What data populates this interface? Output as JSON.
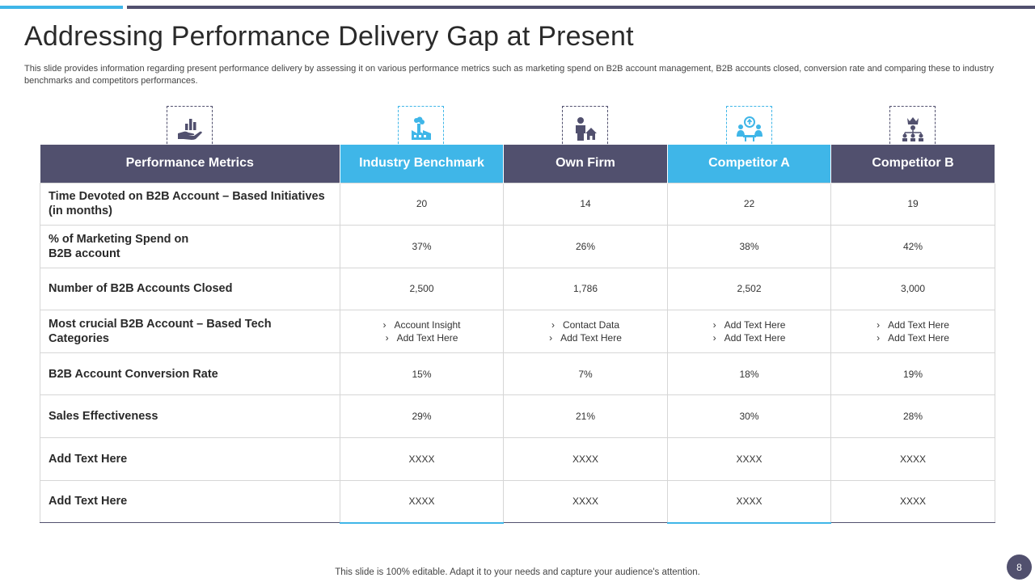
{
  "title": "Addressing Performance Delivery Gap at Present",
  "subtitle": "This slide provides information regarding present performance delivery by  assessing it on various performance metrics such as marketing spend on B2B account management, B2B accounts closed, conversion rate  and comparing these to industry benchmarks and competitors performances.",
  "colors": {
    "dark": "#51506e",
    "accent": "#3fb6e8"
  },
  "icons": [
    "hand-chart-icon",
    "factory-icon",
    "person-home-icon",
    "team-meeting-icon",
    "org-hierarchy-icon"
  ],
  "headers": [
    "Performance Metrics",
    "Industry Benchmark",
    "Own Firm",
    "Competitor A",
    "Competitor B"
  ],
  "rows": [
    {
      "metric": "Time Devoted on B2B Account – Based Initiatives (in months)",
      "values": [
        "20",
        "14",
        "22",
        "19"
      ]
    },
    {
      "metric": "% of Marketing Spend on B2B account",
      "values": [
        "37%",
        "26%",
        "38%",
        "42%"
      ]
    },
    {
      "metric": "Number of B2B Accounts  Closed",
      "values": [
        "2,500",
        "1,786",
        "2,502",
        "3,000"
      ]
    },
    {
      "metric": "Most crucial B2B Account  – Based Tech Categories",
      "bullets": [
        [
          "Account Insight",
          "Add Text Here"
        ],
        [
          "Contact Data",
          "Add Text Here"
        ],
        [
          "Add Text Here",
          "Add Text Here"
        ],
        [
          "Add Text Here",
          "Add Text Here"
        ]
      ]
    },
    {
      "metric": "B2B Account  Conversion Rate",
      "values": [
        "15%",
        "7%",
        "18%",
        "19%"
      ]
    },
    {
      "metric": "Sales Effectiveness",
      "values": [
        "29%",
        "21%",
        "30%",
        "28%"
      ]
    },
    {
      "metric": "Add  Text Here",
      "values": [
        "XXXX",
        "XXXX",
        "XXXX",
        "XXXX"
      ]
    },
    {
      "metric": "Add  Text Here",
      "values": [
        "XXXX",
        "XXXX",
        "XXXX",
        "XXXX"
      ]
    }
  ],
  "bullet_glyph": "›",
  "footer": "This slide is 100% editable. Adapt it to your needs and capture your audience's attention.",
  "page_number": "8"
}
